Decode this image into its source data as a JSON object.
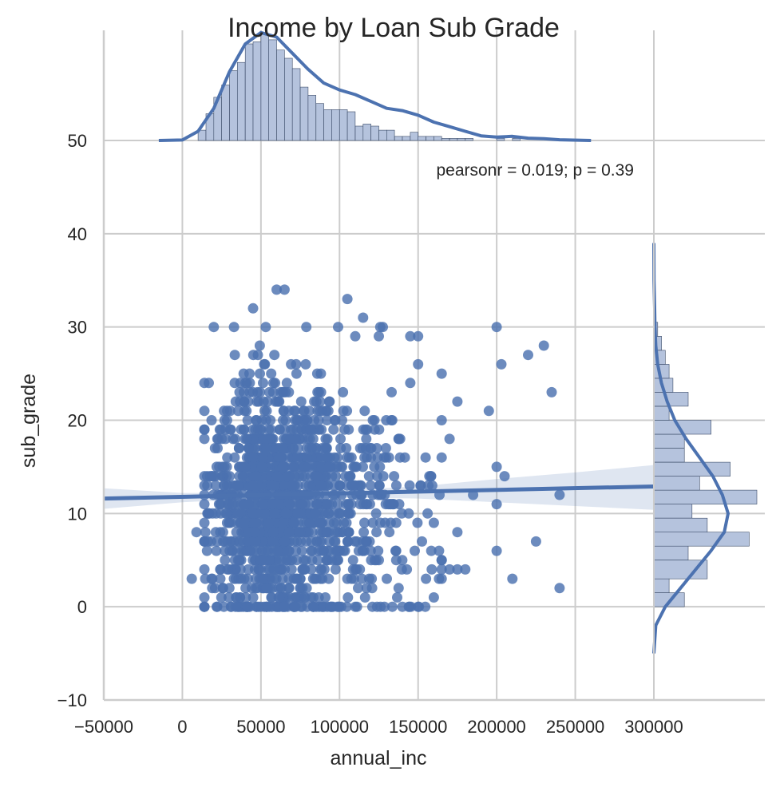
{
  "chart_data": {
    "type": "scatter",
    "title": "Income by Loan Sub Grade",
    "xlabel": "annual_inc",
    "ylabel": "sub_grade",
    "annotation": "pearsonr = 0.019; p = 0.39",
    "xlim": [
      -50000,
      300000
    ],
    "ylim": [
      -10,
      50
    ],
    "x_ticks": [
      -50000,
      0,
      50000,
      100000,
      150000,
      200000,
      250000,
      300000
    ],
    "x_tick_labels": [
      "−50000",
      "0",
      "50000",
      "100000",
      "150000",
      "200000",
      "250000",
      "300000"
    ],
    "y_ticks": [
      -10,
      0,
      10,
      20,
      30,
      40,
      50
    ],
    "y_tick_labels": [
      "−10",
      "0",
      "10",
      "20",
      "30",
      "40",
      "50"
    ],
    "grid": true,
    "colors": {
      "primary": "#4c72b0",
      "hist_fill": "#b5c3dd",
      "grid": "#cccccc"
    },
    "scatter_outliers": [
      [
        6000,
        3
      ],
      [
        9000,
        8
      ],
      [
        200000,
        30
      ],
      [
        203000,
        26
      ],
      [
        220000,
        27
      ],
      [
        230000,
        28
      ],
      [
        235000,
        23
      ],
      [
        240000,
        12
      ],
      [
        240000,
        2
      ],
      [
        225000,
        7
      ],
      [
        210000,
        3
      ],
      [
        200000,
        6
      ],
      [
        200000,
        11
      ],
      [
        205000,
        14
      ],
      [
        200000,
        15
      ],
      [
        195000,
        21
      ],
      [
        175000,
        22
      ],
      [
        165000,
        25
      ],
      [
        150000,
        26
      ],
      [
        150000,
        29
      ],
      [
        145000,
        24
      ],
      [
        145000,
        29
      ],
      [
        125000,
        29
      ],
      [
        115000,
        31
      ],
      [
        110000,
        29
      ],
      [
        105000,
        33
      ],
      [
        65000,
        34
      ],
      [
        60000,
        34
      ],
      [
        45000,
        32
      ],
      [
        20000,
        30
      ],
      [
        180000,
        4
      ],
      [
        170000,
        4
      ],
      [
        155000,
        3
      ],
      [
        160000,
        1
      ],
      [
        150000,
        0
      ],
      [
        140000,
        0
      ],
      [
        160000,
        9
      ],
      [
        170000,
        18
      ],
      [
        175000,
        8
      ],
      [
        165000,
        5
      ],
      [
        175000,
        4
      ],
      [
        185000,
        12
      ]
    ],
    "regression_line": {
      "x": [
        -50000,
        300000
      ],
      "y": [
        11.6,
        12.9
      ]
    },
    "regression_ci": {
      "x": [
        -50000,
        0,
        50000,
        100000,
        150000,
        200000,
        250000,
        300000
      ],
      "lower": [
        10.5,
        11.2,
        11.6,
        11.7,
        11.6,
        11.2,
        10.8,
        10.4
      ],
      "upper": [
        12.7,
        12.2,
        12.2,
        12.5,
        12.9,
        13.7,
        14.4,
        15.2
      ]
    },
    "x_marginal_hist": {
      "bin_width": 5000,
      "bin_start": 10000,
      "counts": [
        5,
        13,
        21,
        27,
        34,
        38,
        47,
        48,
        52,
        49,
        44,
        40,
        35,
        26,
        22,
        18,
        15,
        15,
        15,
        14,
        7,
        8,
        7,
        5,
        5,
        2,
        2,
        4,
        2,
        2,
        2,
        1,
        1,
        1,
        1,
        0,
        0,
        0,
        1,
        0,
        1
      ],
      "kde_x": [
        -15000,
        0,
        10000,
        20000,
        30000,
        40000,
        50000,
        60000,
        70000,
        80000,
        90000,
        100000,
        110000,
        120000,
        130000,
        140000,
        150000,
        160000,
        170000,
        180000,
        190000,
        200000,
        210000,
        220000,
        230000,
        240000,
        260000
      ],
      "kde_y": [
        0,
        0.2,
        4,
        14,
        30,
        42,
        47,
        45,
        38,
        31,
        25,
        22,
        20,
        17,
        14,
        13,
        11,
        8,
        6,
        4,
        2,
        1.5,
        1.8,
        1,
        0.8,
        0.3,
        0
      ]
    },
    "y_marginal_hist": {
      "bins": [
        {
          "y0": 0,
          "y1": 1.5,
          "count": 8
        },
        {
          "y0": 1.5,
          "y1": 3,
          "count": 4
        },
        {
          "y0": 3,
          "y1": 5,
          "count": 14
        },
        {
          "y0": 5,
          "y1": 6.5,
          "count": 9
        },
        {
          "y0": 6.5,
          "y1": 8,
          "count": 25
        },
        {
          "y0": 8,
          "y1": 9.5,
          "count": 14
        },
        {
          "y0": 9.5,
          "y1": 11,
          "count": 10
        },
        {
          "y0": 11,
          "y1": 12.5,
          "count": 27
        },
        {
          "y0": 12.5,
          "y1": 14,
          "count": 12
        },
        {
          "y0": 14,
          "y1": 15.5,
          "count": 20
        },
        {
          "y0": 15.5,
          "y1": 17,
          "count": 8
        },
        {
          "y0": 17,
          "y1": 18.5,
          "count": 8
        },
        {
          "y0": 18.5,
          "y1": 20,
          "count": 15
        },
        {
          "y0": 20,
          "y1": 21.5,
          "count": 4
        },
        {
          "y0": 21.5,
          "y1": 23,
          "count": 9
        },
        {
          "y0": 23,
          "y1": 24.5,
          "count": 5
        },
        {
          "y0": 24.5,
          "y1": 26,
          "count": 4
        },
        {
          "y0": 26,
          "y1": 27.5,
          "count": 3
        },
        {
          "y0": 27.5,
          "y1": 29,
          "count": 2
        },
        {
          "y0": 29,
          "y1": 30.5,
          "count": 1
        }
      ],
      "kde_y": [
        -5,
        -2,
        0,
        2,
        4,
        6,
        8,
        10,
        12,
        14,
        16,
        18,
        20,
        22,
        24,
        26,
        28,
        30,
        32,
        35,
        39
      ],
      "kde_x": [
        0,
        0.5,
        3,
        7,
        11,
        15,
        18.5,
        19.5,
        18,
        15.5,
        12,
        8.5,
        5.5,
        3.5,
        2,
        1,
        0.5,
        0.3,
        0.2,
        0.05,
        0
      ]
    }
  }
}
